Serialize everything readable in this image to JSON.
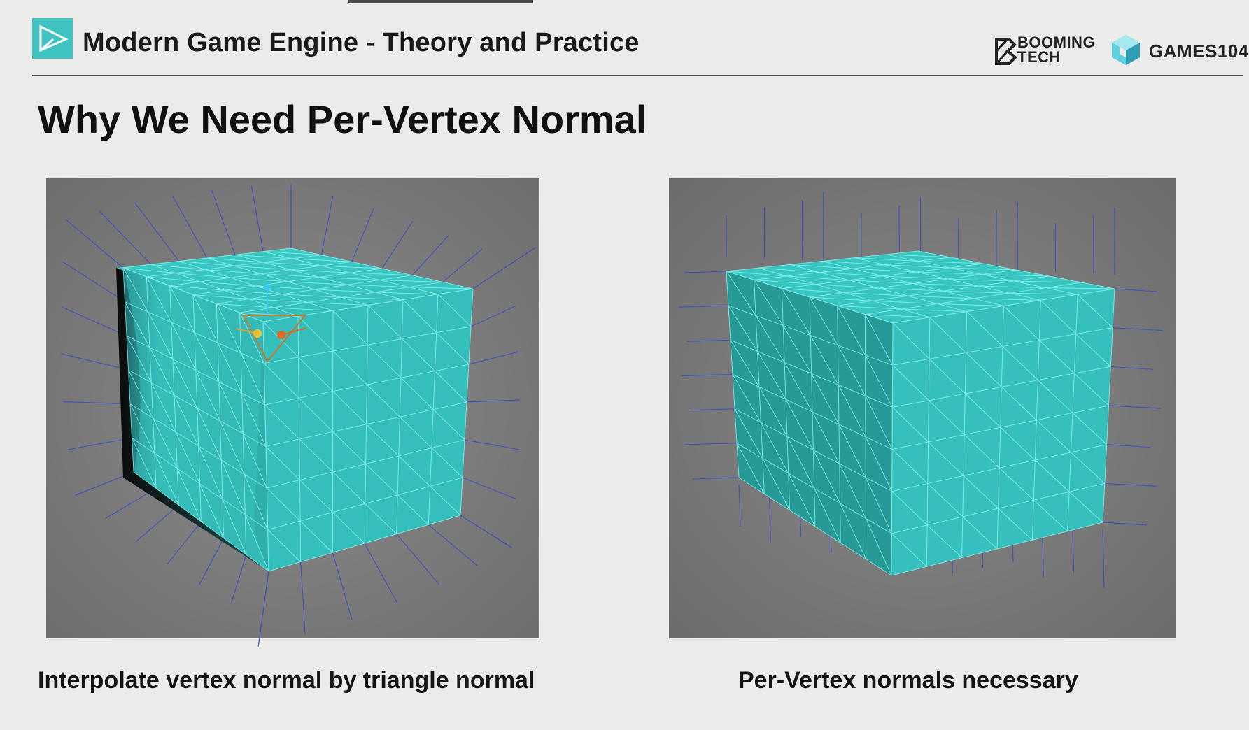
{
  "header": {
    "course_title": "Modern Game Engine - Theory and Practice",
    "logo_icon": "play-triangle-icon",
    "partner_logos": [
      {
        "name": "booming-tech-logo",
        "lines": [
          "BOOMING",
          "TECH"
        ]
      },
      {
        "name": "games104-logo",
        "text": "GAMES104"
      }
    ]
  },
  "slide": {
    "title": "Why We Need Per-Vertex Normal",
    "figures": [
      {
        "caption": "Interpolate vertex normal by triangle normal",
        "image": "smooth-shaded-cube-render"
      },
      {
        "caption": "Per-Vertex normals necessary",
        "image": "flat-shaded-cube-render"
      }
    ]
  },
  "colors": {
    "background": "#ebebea",
    "accent_teal": "#3fc7c4",
    "cube_teal": "#38c8c4",
    "normal_lines": "#3b4fbf",
    "viewport_gray": "#7f7f7f"
  }
}
